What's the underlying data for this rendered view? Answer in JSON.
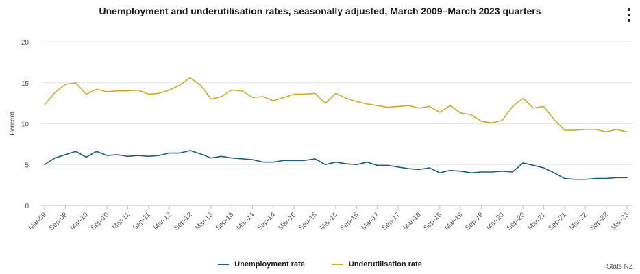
{
  "title": "Unemployment and underutilisation rates, seasonally adjusted, March 2009–March 2023 quarters",
  "menu_icon": "more-vertical-icon",
  "credit": "Stats NZ",
  "chart_data": {
    "type": "line",
    "title": "Unemployment and underutilisation rates, seasonally adjusted, March 2009–March 2023 quarters",
    "xlabel": "",
    "ylabel": "Percent",
    "ylim": [
      0,
      20
    ],
    "yticks": [
      0,
      5,
      10,
      15,
      20
    ],
    "grid": true,
    "legend_position": "bottom-center",
    "x": [
      "Mar-09",
      "Jun-09",
      "Sep-09",
      "Dec-09",
      "Mar-10",
      "Jun-10",
      "Sep-10",
      "Dec-10",
      "Mar-11",
      "Jun-11",
      "Sep-11",
      "Dec-11",
      "Mar-12",
      "Jun-12",
      "Sep-12",
      "Dec-12",
      "Mar-13",
      "Jun-13",
      "Sep-13",
      "Dec-13",
      "Mar-14",
      "Jun-14",
      "Sep-14",
      "Dec-14",
      "Mar-15",
      "Jun-15",
      "Sep-15",
      "Dec-15",
      "Mar-16",
      "Jun-16",
      "Sep-16",
      "Dec-16",
      "Mar-17",
      "Jun-17",
      "Sep-17",
      "Dec-17",
      "Mar-18",
      "Jun-18",
      "Sep-18",
      "Dec-18",
      "Mar-19",
      "Jun-19",
      "Sep-19",
      "Dec-19",
      "Mar-20",
      "Jun-20",
      "Sep-20",
      "Dec-20",
      "Mar-21",
      "Jun-21",
      "Sep-21",
      "Dec-21",
      "Mar-22",
      "Jun-22",
      "Sep-22",
      "Dec-22",
      "Mar-23"
    ],
    "xtick_labels": [
      "Mar-09",
      "Sep-09",
      "Mar-10",
      "Sep-10",
      "Mar-11",
      "Sep-11",
      "Mar-12",
      "Sep-12",
      "Mar-13",
      "Sep-13",
      "Mar-14",
      "Sep-14",
      "Mar-15",
      "Sep-15",
      "Mar-16",
      "Sep-16",
      "Mar-17",
      "Sep-17",
      "Mar-18",
      "Sep-18",
      "Mar-19",
      "Sep-19",
      "Mar-20",
      "Sep-20",
      "Mar-21",
      "Sep-21",
      "Mar-22",
      "Sep-22",
      "Mar-23"
    ],
    "series": [
      {
        "name": "Unemployment rate",
        "color": "#1f5f73",
        "values": [
          5.0,
          5.8,
          6.2,
          6.6,
          5.9,
          6.6,
          6.1,
          6.2,
          6.0,
          6.1,
          6.0,
          6.1,
          6.4,
          6.4,
          6.7,
          6.3,
          5.8,
          6.0,
          5.8,
          5.7,
          5.6,
          5.3,
          5.3,
          5.5,
          5.5,
          5.5,
          5.7,
          5.0,
          5.3,
          5.1,
          5.0,
          5.3,
          4.9,
          4.9,
          4.7,
          4.5,
          4.4,
          4.6,
          4.0,
          4.3,
          4.2,
          4.0,
          4.1,
          4.1,
          4.2,
          4.1,
          5.2,
          4.9,
          4.6,
          4.0,
          3.3,
          3.2,
          3.2,
          3.3,
          3.3,
          3.4,
          3.4
        ]
      },
      {
        "name": "Underutilisation rate",
        "color": "#c9ad2c",
        "values": [
          12.3,
          13.8,
          14.8,
          15.0,
          13.6,
          14.2,
          13.9,
          14.0,
          14.0,
          14.1,
          13.6,
          13.7,
          14.1,
          14.7,
          15.6,
          14.7,
          13.0,
          13.3,
          14.1,
          14.0,
          13.2,
          13.3,
          12.8,
          13.2,
          13.6,
          13.6,
          13.7,
          12.5,
          13.7,
          13.1,
          12.7,
          12.4,
          12.2,
          12.0,
          12.1,
          12.2,
          11.9,
          12.1,
          11.4,
          12.2,
          11.3,
          11.1,
          10.3,
          10.1,
          10.4,
          12.1,
          13.1,
          11.9,
          12.1,
          10.5,
          9.2,
          9.2,
          9.3,
          9.3,
          9.0,
          9.3,
          9.0
        ]
      }
    ]
  }
}
